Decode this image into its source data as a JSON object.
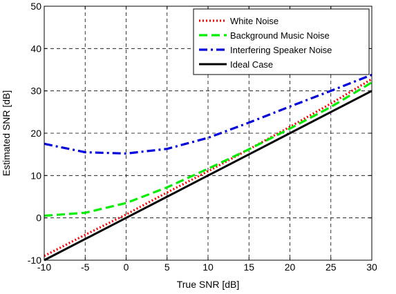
{
  "chart_data": {
    "type": "line",
    "title": "",
    "xlabel": "True SNR [dB]",
    "ylabel": "Estimated SNR [dB]",
    "xlim": [
      -10,
      30
    ],
    "ylim": [
      -10,
      50
    ],
    "xticks": [
      -10,
      -5,
      0,
      5,
      10,
      15,
      20,
      25,
      30
    ],
    "yticks": [
      -10,
      0,
      10,
      20,
      30,
      40,
      50
    ],
    "grid": true,
    "legend_position": "top-right",
    "x": [
      -10,
      -5,
      0,
      5,
      10,
      15,
      20,
      25,
      30
    ],
    "series": [
      {
        "name": "White Noise",
        "color": "#ff0000",
        "style": "dotted",
        "values": [
          -9,
          -4,
          0.8,
          6,
          11,
          16.2,
          21.5,
          27,
          32.8
        ]
      },
      {
        "name": "Background Music Noise",
        "color": "#00ee00",
        "style": "dashed",
        "values": [
          0.5,
          1.2,
          3.5,
          7.2,
          11.6,
          16.2,
          21.1,
          26.2,
          32
        ]
      },
      {
        "name": "Interfering Speaker Noise",
        "color": "#0000dd",
        "style": "dashdot",
        "values": [
          17.5,
          15.5,
          15.2,
          16.3,
          18.9,
          22.5,
          26.3,
          30,
          33.8
        ]
      },
      {
        "name": "Ideal Case",
        "color": "#000000",
        "style": "solid",
        "values": [
          -10,
          -5,
          0,
          5,
          10,
          15,
          20,
          25,
          30
        ]
      }
    ]
  }
}
